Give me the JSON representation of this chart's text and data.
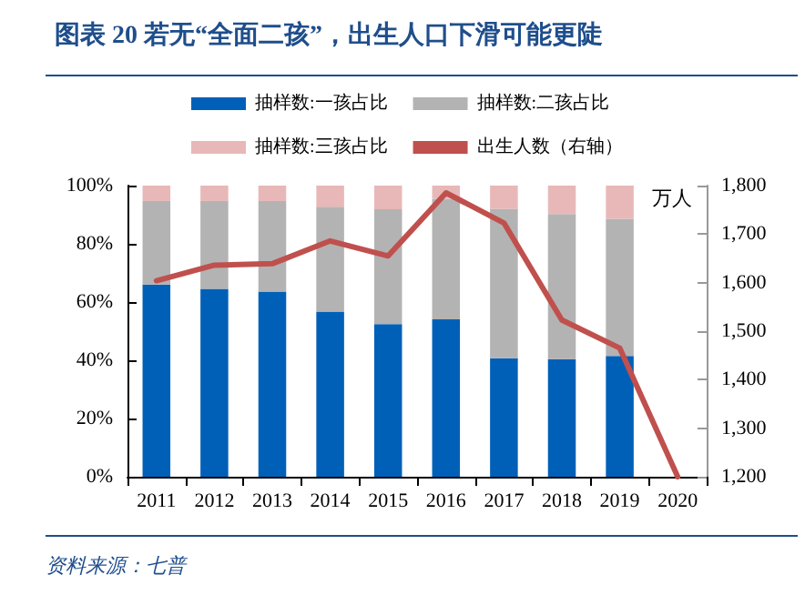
{
  "chart_data": {
    "type": "bar",
    "title": "图表 20 若无“全面二孩”，出生人口下滑可能更陡",
    "categories": [
      "2011",
      "2012",
      "2013",
      "2014",
      "2015",
      "2016",
      "2017",
      "2018",
      "2019",
      "2020"
    ],
    "series": [
      {
        "name": "抽样数:一孩占比",
        "color": "#0060b8",
        "values": [
          66,
          64.5,
          63.6,
          56.7,
          52.4,
          54.1,
          40.7,
          40.4,
          41.5,
          null
        ]
      },
      {
        "name": "抽样数:二孩占比",
        "color": "#b3b3b3",
        "values": [
          28.7,
          30.2,
          31.1,
          36,
          39.5,
          41.4,
          51.3,
          49.8,
          47.1,
          null
        ]
      },
      {
        "name": "抽样数:三孩占比",
        "color": "#e8b8b8",
        "values": [
          5.3,
          5.3,
          5.3,
          7.3,
          8.1,
          4.5,
          8,
          9.8,
          11.4,
          null
        ]
      },
      {
        "name": "出生人数（右轴）",
        "type": "line",
        "axis": "y2",
        "color": "#c0504d",
        "values": [
          1604,
          1636,
          1639,
          1686,
          1655,
          1785,
          1723,
          1523,
          1465,
          1200
        ]
      }
    ],
    "stacked": true,
    "ylim": [
      0,
      100
    ],
    "yticks": [
      {
        "value": 0,
        "label": "0%"
      },
      {
        "value": 20,
        "label": "20%"
      },
      {
        "value": 40,
        "label": "40%"
      },
      {
        "value": 60,
        "label": "60%"
      },
      {
        "value": 80,
        "label": "80%"
      },
      {
        "value": 100,
        "label": "100%"
      }
    ],
    "y2label": "万人",
    "y2lim": [
      1200,
      1800
    ],
    "y2ticks": [
      {
        "value": 1200,
        "label": "1,200"
      },
      {
        "value": 1300,
        "label": "1,300"
      },
      {
        "value": 1400,
        "label": "1,400"
      },
      {
        "value": 1500,
        "label": "1,500"
      },
      {
        "value": 1600,
        "label": "1,600"
      },
      {
        "value": 1700,
        "label": "1,700"
      },
      {
        "value": 1800,
        "label": "1,800"
      }
    ],
    "annotations": [
      "资料来源：七普"
    ],
    "grid": false,
    "legend": "top",
    "marker": "none",
    "line_style": "solid"
  }
}
